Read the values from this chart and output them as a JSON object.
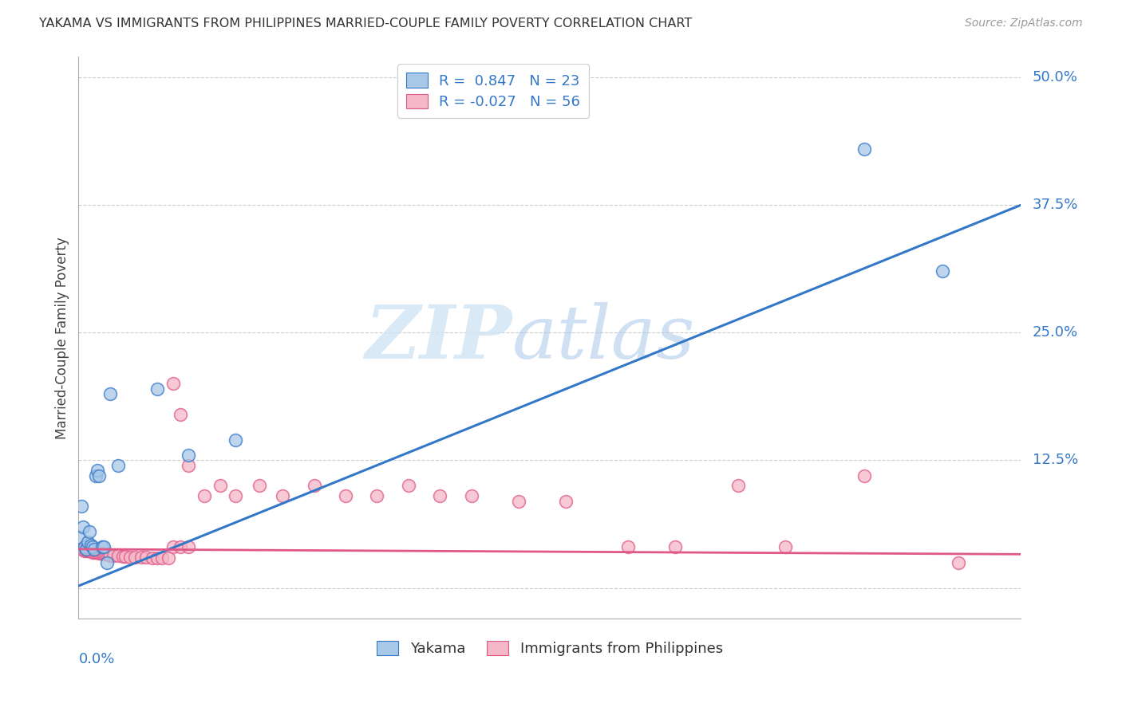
{
  "title": "YAKAMA VS IMMIGRANTS FROM PHILIPPINES MARRIED-COUPLE FAMILY POVERTY CORRELATION CHART",
  "source": "Source: ZipAtlas.com",
  "ylabel": "Married-Couple Family Poverty",
  "legend1_r": "0.847",
  "legend1_n": "23",
  "legend2_r": "-0.027",
  "legend2_n": "56",
  "color_blue": "#a8c8e8",
  "color_pink": "#f4b8c8",
  "line_blue": "#3378c8",
  "line_pink": "#e05888",
  "watermark_zip": "ZIP",
  "watermark_atlas": "atlas",
  "xlim": [
    0.0,
    0.6
  ],
  "ylim": [
    -0.03,
    0.52
  ],
  "bg_color": "#ffffff",
  "grid_color": "#cccccc",
  "ytick_vals": [
    0.0,
    0.125,
    0.25,
    0.375,
    0.5
  ],
  "ytick_labels": [
    "",
    "12.5%",
    "25.0%",
    "37.5%",
    "50.0%"
  ],
  "blue_line_x": [
    0.0,
    0.6
  ],
  "blue_line_y": [
    0.002,
    0.375
  ],
  "pink_line_x": [
    0.0,
    0.6
  ],
  "pink_line_y": [
    0.038,
    0.033
  ],
  "yakama_x": [
    0.001,
    0.002,
    0.003,
    0.004,
    0.005,
    0.006,
    0.007,
    0.008,
    0.009,
    0.01,
    0.011,
    0.012,
    0.013,
    0.015,
    0.016,
    0.018,
    0.02,
    0.025,
    0.05,
    0.07,
    0.1,
    0.5,
    0.55
  ],
  "yakama_y": [
    0.05,
    0.08,
    0.06,
    0.04,
    0.038,
    0.045,
    0.055,
    0.042,
    0.04,
    0.038,
    0.11,
    0.115,
    0.11,
    0.04,
    0.04,
    0.025,
    0.19,
    0.12,
    0.195,
    0.13,
    0.145,
    0.43,
    0.31
  ],
  "philippines_x": [
    0.002,
    0.003,
    0.004,
    0.005,
    0.006,
    0.007,
    0.008,
    0.009,
    0.01,
    0.011,
    0.012,
    0.013,
    0.014,
    0.015,
    0.016,
    0.017,
    0.018,
    0.019,
    0.02,
    0.022,
    0.025,
    0.028,
    0.03,
    0.033,
    0.036,
    0.04,
    0.043,
    0.047,
    0.05,
    0.053,
    0.057,
    0.06,
    0.065,
    0.07,
    0.06,
    0.065,
    0.07,
    0.08,
    0.09,
    0.1,
    0.115,
    0.13,
    0.15,
    0.17,
    0.19,
    0.21,
    0.23,
    0.25,
    0.28,
    0.31,
    0.35,
    0.38,
    0.42,
    0.45,
    0.5,
    0.56
  ],
  "philippines_y": [
    0.038,
    0.038,
    0.036,
    0.036,
    0.036,
    0.036,
    0.036,
    0.035,
    0.035,
    0.035,
    0.035,
    0.034,
    0.034,
    0.034,
    0.033,
    0.033,
    0.033,
    0.033,
    0.032,
    0.032,
    0.032,
    0.031,
    0.031,
    0.03,
    0.03,
    0.03,
    0.03,
    0.029,
    0.029,
    0.029,
    0.029,
    0.2,
    0.17,
    0.12,
    0.04,
    0.04,
    0.04,
    0.09,
    0.1,
    0.09,
    0.1,
    0.09,
    0.1,
    0.09,
    0.09,
    0.1,
    0.09,
    0.09,
    0.085,
    0.085,
    0.04,
    0.04,
    0.1,
    0.04,
    0.11,
    0.025
  ]
}
